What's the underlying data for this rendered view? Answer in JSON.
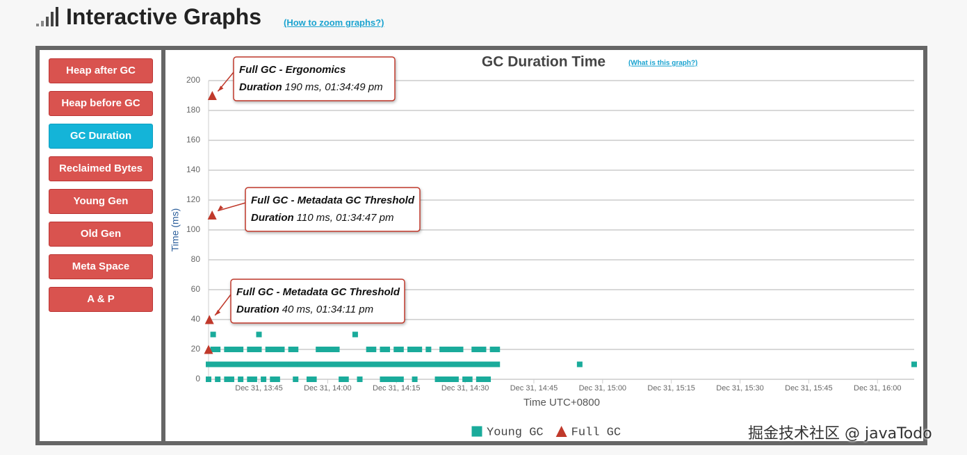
{
  "header": {
    "title": "Interactive Graphs",
    "link": "(How to zoom graphs?)"
  },
  "sidebar": {
    "buttons": [
      "Heap after GC",
      "Heap before GC",
      "GC Duration",
      "Reclaimed Bytes",
      "Young Gen",
      "Old Gen",
      "Meta Space",
      "A & P"
    ],
    "active_index": 2
  },
  "watermark": "掘金技术社区 @ javaTodo",
  "chart_data": {
    "type": "scatter",
    "title": "GC Duration Time",
    "help_link": "(What is this graph?)",
    "x_label": "Time UTC+0800",
    "y_label": "Time (ms)",
    "xlim": [
      "Dec 31, 13:34",
      "Dec 31, 16:08"
    ],
    "xticks": [
      "Dec 31, 13:45",
      "Dec 31, 14:00",
      "Dec 31, 14:15",
      "Dec 31, 14:30",
      "Dec 31, 14:45",
      "Dec 31, 15:00",
      "Dec 31, 15:15",
      "Dec 31, 15:30",
      "Dec 31, 15:45",
      "Dec 31, 16:00"
    ],
    "ylim": [
      0,
      200
    ],
    "yticks": [
      0,
      20,
      40,
      60,
      80,
      100,
      120,
      140,
      160,
      180,
      200
    ],
    "grid": true,
    "legend": "bottom",
    "series": [
      {
        "name": "Young GC",
        "color": "#1aab9b",
        "marker": "square",
        "x": [
          "Dec 31, 13:34",
          "Dec 31, 13:35",
          "Dec 31, 13:36",
          "Dec 31, 13:37",
          "Dec 31, 13:38",
          "Dec 31, 13:39",
          "Dec 31, 13:40",
          "Dec 31, 13:41",
          "Dec 31, 13:42",
          "Dec 31, 13:43",
          "Dec 31, 13:44",
          "Dec 31, 13:45",
          "Dec 31, 13:46",
          "Dec 31, 13:47",
          "Dec 31, 13:48",
          "Dec 31, 13:49",
          "Dec 31, 13:50",
          "Dec 31, 13:51",
          "Dec 31, 13:52",
          "Dec 31, 13:53",
          "Dec 31, 13:54",
          "Dec 31, 13:55",
          "Dec 31, 13:56",
          "Dec 31, 13:57",
          "Dec 31, 13:58",
          "Dec 31, 13:59",
          "Dec 31, 14:00",
          "Dec 31, 14:01",
          "Dec 31, 14:02",
          "Dec 31, 14:03",
          "Dec 31, 14:04",
          "Dec 31, 14:05",
          "Dec 31, 14:06",
          "Dec 31, 14:07",
          "Dec 31, 14:08",
          "Dec 31, 14:09",
          "Dec 31, 14:10",
          "Dec 31, 14:11",
          "Dec 31, 14:12",
          "Dec 31, 14:13",
          "Dec 31, 14:14",
          "Dec 31, 14:15",
          "Dec 31, 14:16",
          "Dec 31, 14:17",
          "Dec 31, 14:18",
          "Dec 31, 14:19",
          "Dec 31, 14:20",
          "Dec 31, 14:21",
          "Dec 31, 14:22",
          "Dec 31, 14:23",
          "Dec 31, 14:24",
          "Dec 31, 14:25",
          "Dec 31, 14:26",
          "Dec 31, 14:27",
          "Dec 31, 14:28",
          "Dec 31, 14:29",
          "Dec 31, 14:30",
          "Dec 31, 14:31",
          "Dec 31, 14:32",
          "Dec 31, 14:33",
          "Dec 31, 14:34",
          "Dec 31, 14:35",
          "Dec 31, 14:36",
          "Dec 31, 14:37",
          "Dec 31, 14:55",
          "Dec 31, 16:08",
          "Dec 31, 13:35",
          "Dec 31, 13:36",
          "Dec 31, 13:38",
          "Dec 31, 13:39",
          "Dec 31, 13:40",
          "Dec 31, 13:41",
          "Dec 31, 13:43",
          "Dec 31, 13:44",
          "Dec 31, 13:45",
          "Dec 31, 13:47",
          "Dec 31, 13:48",
          "Dec 31, 13:49",
          "Dec 31, 13:50",
          "Dec 31, 13:52",
          "Dec 31, 13:53",
          "Dec 31, 13:58",
          "Dec 31, 13:59",
          "Dec 31, 14:00",
          "Dec 31, 14:01",
          "Dec 31, 14:02",
          "Dec 31, 14:09",
          "Dec 31, 14:10",
          "Dec 31, 14:12",
          "Dec 31, 14:13",
          "Dec 31, 14:15",
          "Dec 31, 14:16",
          "Dec 31, 14:18",
          "Dec 31, 14:19",
          "Dec 31, 14:20",
          "Dec 31, 14:22",
          "Dec 31, 14:25",
          "Dec 31, 14:26",
          "Dec 31, 14:27",
          "Dec 31, 14:28",
          "Dec 31, 14:29",
          "Dec 31, 14:32",
          "Dec 31, 14:33",
          "Dec 31, 14:34",
          "Dec 31, 14:36",
          "Dec 31, 14:37",
          "Dec 31, 13:34",
          "Dec 31, 13:36",
          "Dec 31, 13:38",
          "Dec 31, 13:39",
          "Dec 31, 13:41",
          "Dec 31, 13:43",
          "Dec 31, 13:44",
          "Dec 31, 13:46",
          "Dec 31, 13:48",
          "Dec 31, 13:49",
          "Dec 31, 13:53",
          "Dec 31, 13:56",
          "Dec 31, 13:57",
          "Dec 31, 14:03",
          "Dec 31, 14:04",
          "Dec 31, 14:07",
          "Dec 31, 14:12",
          "Dec 31, 14:13",
          "Dec 31, 14:14",
          "Dec 31, 14:15",
          "Dec 31, 14:16",
          "Dec 31, 14:19",
          "Dec 31, 14:24",
          "Dec 31, 14:25",
          "Dec 31, 14:26",
          "Dec 31, 14:27",
          "Dec 31, 14:28",
          "Dec 31, 14:30",
          "Dec 31, 14:31",
          "Dec 31, 14:33",
          "Dec 31, 14:34",
          "Dec 31, 14:35",
          "Dec 31, 13:35",
          "Dec 31, 13:45",
          "Dec 31, 14:06"
        ],
        "values": [
          10,
          10,
          10,
          10,
          10,
          10,
          10,
          10,
          10,
          10,
          10,
          10,
          10,
          10,
          10,
          10,
          10,
          10,
          10,
          10,
          10,
          10,
          10,
          10,
          10,
          10,
          10,
          10,
          10,
          10,
          10,
          10,
          10,
          10,
          10,
          10,
          10,
          10,
          10,
          10,
          10,
          10,
          10,
          10,
          10,
          10,
          10,
          10,
          10,
          10,
          10,
          10,
          10,
          10,
          10,
          10,
          10,
          10,
          10,
          10,
          10,
          10,
          10,
          10,
          10,
          10,
          20,
          20,
          20,
          20,
          20,
          20,
          20,
          20,
          20,
          20,
          20,
          20,
          20,
          20,
          20,
          20,
          20,
          20,
          20,
          20,
          20,
          20,
          20,
          20,
          20,
          20,
          20,
          20,
          20,
          20,
          20,
          20,
          20,
          20,
          20,
          20,
          20,
          20,
          20,
          20,
          0,
          0,
          0,
          0,
          0,
          0,
          0,
          0,
          0,
          0,
          0,
          0,
          0,
          0,
          0,
          0,
          0,
          0,
          0,
          0,
          0,
          0,
          0,
          0,
          0,
          0,
          0,
          0,
          0,
          0,
          0,
          0,
          30,
          30,
          30
        ]
      },
      {
        "name": "Full GC",
        "color": "#c0392b",
        "marker": "triangle",
        "x": [
          "Dec 31, 13:34",
          "Dec 31, 13:34:11",
          "Dec 31, 13:34:47",
          "Dec 31, 13:34:49"
        ],
        "values": [
          20,
          40,
          110,
          190
        ]
      }
    ],
    "annotations": [
      {
        "title": "Full GC - Metadata GC Threshold",
        "label": "Duration",
        "text": "40 ms, 01:34:11 pm"
      },
      {
        "title": "Full GC - Metadata GC Threshold",
        "label": "Duration",
        "text": "110 ms, 01:34:47 pm"
      },
      {
        "title": "Full GC - Ergonomics",
        "label": "Duration",
        "text": "190 ms, 01:34:49 pm"
      }
    ]
  }
}
